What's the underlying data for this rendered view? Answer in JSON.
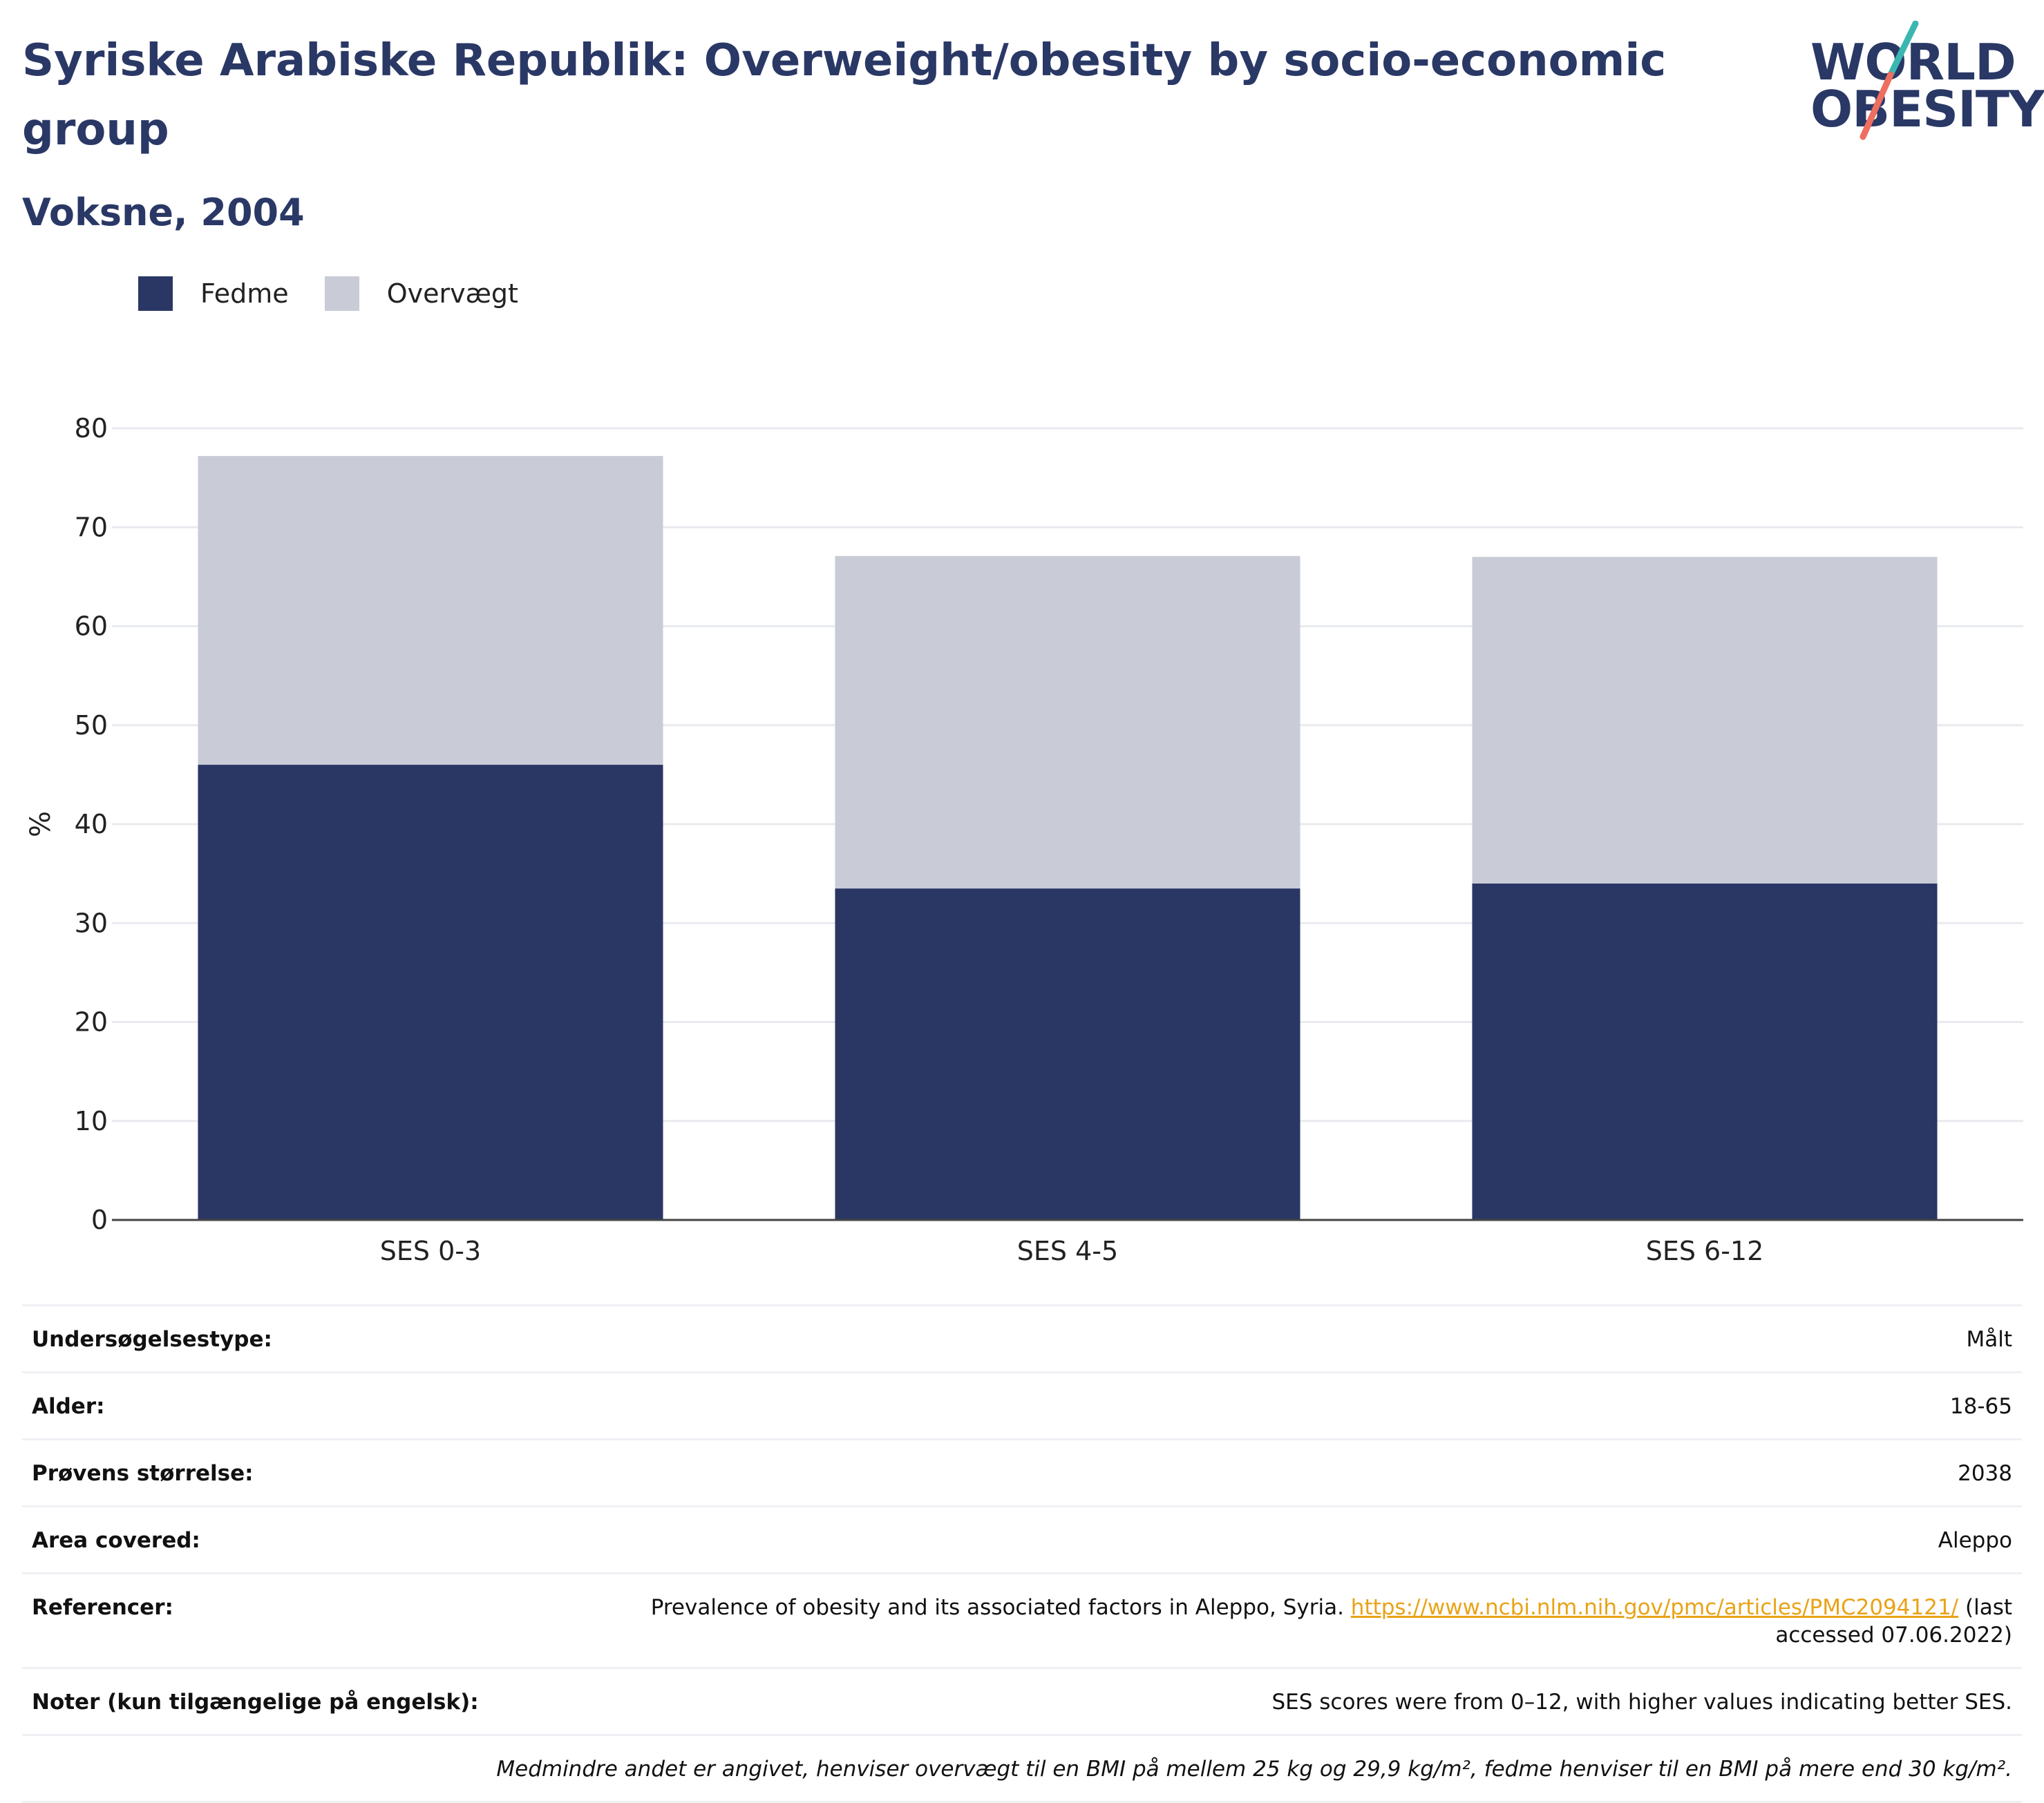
{
  "header": {
    "title": "Syriske Arabiske Republik: Overweight/obesity by socio-economic group",
    "subtitle": "Voksne, 2004"
  },
  "logo": {
    "line1": "WORLD",
    "line2": "OBESITY"
  },
  "colors": {
    "fedme": "#2a3765",
    "overvaegt": "#c9cbd7",
    "title": "#2a3866",
    "link": "#e8a317",
    "logo_teal": "#3bb7b1",
    "logo_coral": "#ee6e5f"
  },
  "chart_data": {
    "type": "bar",
    "stacked": true,
    "categories": [
      "SES 0-3",
      "SES 4-5",
      "SES 6-12"
    ],
    "series": [
      {
        "name": "Fedme",
        "values": [
          46.0,
          33.5,
          34.0
        ],
        "color": "#2a3765"
      },
      {
        "name": "Overvægt",
        "values": [
          31.2,
          33.6,
          33.0
        ],
        "color": "#c9cbd7"
      }
    ],
    "ylabel": "%",
    "ylim": [
      0,
      80
    ],
    "yticks": [
      "0",
      "10",
      "20",
      "30",
      "40",
      "50",
      "60",
      "70",
      "80"
    ],
    "grid": true,
    "legend": "top-left"
  },
  "info": {
    "survey_type": {
      "label": "Undersøgelsestype:",
      "value": "Målt"
    },
    "age": {
      "label": "Alder:",
      "value": "18-65"
    },
    "sample_size": {
      "label": "Prøvens størrelse:",
      "value": "2038"
    },
    "area": {
      "label": "Area covered:",
      "value": "Aleppo"
    },
    "references": {
      "label": "Referencer:",
      "text": "Prevalence of obesity and its associated factors in Aleppo, Syria.",
      "link": "https://www.ncbi.nlm.nih.gov/pmc/articles/PMC2094121/",
      "suffix": "(last accessed 07.06.2022)"
    },
    "notes": {
      "label": "Noter (kun tilgængelige på engelsk):",
      "value": "SES scores were from 0–12, with higher values indicating better SES."
    },
    "footnote": "Medmindre andet er angivet, henviser overvægt til en BMI på mellem 25 kg og 29,9 kg/m², fedme henviser til en BMI på mere end 30 kg/m²."
  }
}
